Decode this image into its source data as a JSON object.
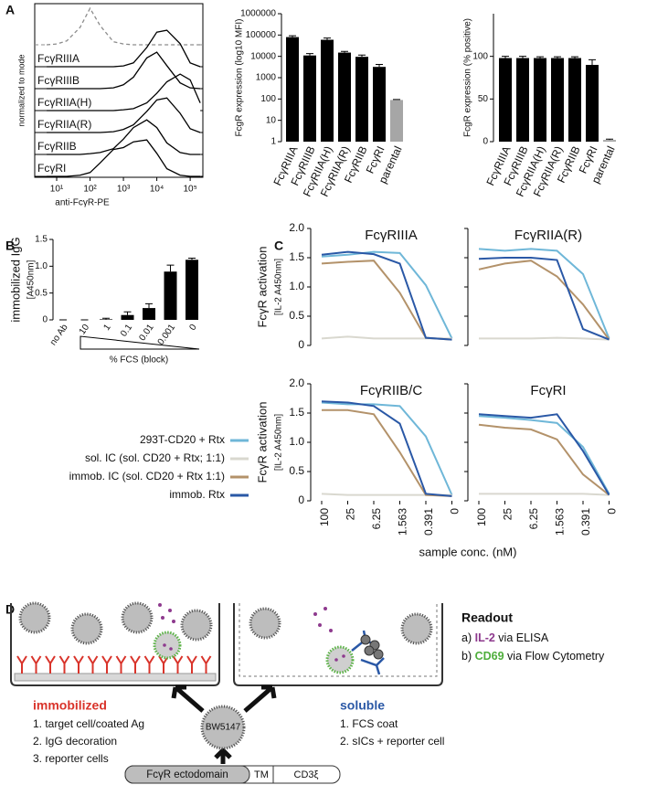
{
  "panel_labels": [
    "A",
    "B",
    "C",
    "D"
  ],
  "chart_data": [
    {
      "type": "ridgeline",
      "xlabel": "anti-FcγR-PE",
      "ylabel": "normalized to mode",
      "log_x": true,
      "xlim": [
        2.2,
        240000
      ],
      "xticks": [
        {
          "value": 10,
          "label": "10¹"
        },
        {
          "value": 100,
          "label": "10²"
        },
        {
          "value": 1000,
          "label": "10³"
        },
        {
          "value": 10000,
          "label": "10⁴"
        },
        {
          "value": 100000,
          "label": "10⁵"
        }
      ],
      "x": [
        5,
        10,
        20,
        50,
        100,
        200,
        500,
        1000,
        2000,
        5000,
        10000,
        20000,
        50000,
        100000,
        200000
      ],
      "series": [
        {
          "dashed": true,
          "color": "#8c8c8c",
          "values": [
            0,
            0.02,
            0.1,
            0.45,
            0.95,
            0.5,
            0.08,
            0.02,
            0,
            0,
            0,
            0,
            0,
            0,
            0
          ]
        },
        {
          "name": "FcγRIIIA",
          "color": "#000000",
          "values": [
            0,
            0,
            0,
            0,
            0,
            0,
            0,
            0.02,
            0.1,
            0.5,
            0.9,
            0.95,
            0.6,
            0.1,
            0
          ]
        },
        {
          "name": "FcγRIIIB",
          "color": "#000000",
          "values": [
            0,
            0,
            0,
            0,
            0,
            0,
            0.02,
            0.1,
            0.3,
            0.8,
            0.95,
            0.6,
            0.15,
            0.02,
            0
          ]
        },
        {
          "name": "FcγRIIA(H)",
          "color": "#000000",
          "values": [
            0,
            0,
            0,
            0,
            0,
            0,
            0,
            0.02,
            0.05,
            0.2,
            0.45,
            0.75,
            0.95,
            0.8,
            0.2
          ]
        },
        {
          "name": "FcγRIIA(R)",
          "color": "#000000",
          "values": [
            0,
            0,
            0,
            0,
            0,
            0,
            0.02,
            0.08,
            0.2,
            0.55,
            0.85,
            0.9,
            0.5,
            0.1,
            0
          ]
        },
        {
          "name": "FcγRIIB",
          "color": "#000000",
          "values": [
            0,
            0,
            0,
            0,
            0.02,
            0.05,
            0.15,
            0.4,
            0.7,
            0.9,
            0.7,
            0.3,
            0.05,
            0,
            0
          ]
        },
        {
          "name": "FcγRI",
          "color": "#000000",
          "values": [
            0,
            0,
            0,
            0.03,
            0.1,
            0.35,
            0.7,
            0.75,
            0.9,
            0.95,
            0.6,
            0.2,
            0.03,
            0,
            0
          ]
        }
      ]
    },
    {
      "type": "bar",
      "log": true,
      "ylabel": "FcgR expression (log10 MFI)",
      "categories": [
        "FcγRIIIA",
        "FcγRIIIB",
        "FcγRIIA(H)",
        "FcγRIIA(R)",
        "FcγRIIB",
        "FcγRI",
        "parental"
      ],
      "values": [
        80000,
        11000,
        60000,
        15000,
        9500,
        3200,
        90
      ],
      "errors": [
        12000,
        2500,
        12000,
        2000,
        2000,
        1000,
        5
      ],
      "colors": [
        "#000000",
        "#000000",
        "#000000",
        "#000000",
        "#000000",
        "#000000",
        "#a6a6a6"
      ],
      "ylim": [
        1,
        1000000
      ],
      "yticks": [
        1,
        10,
        100,
        1000,
        10000,
        100000,
        1000000
      ]
    },
    {
      "type": "bar",
      "ylabel": "FcgR expression (% positive)",
      "categories": [
        "FcγRIIIA",
        "FcγRIIIB",
        "FcγRIIA(H)",
        "FcγRIIA(R)",
        "FcγRIIB",
        "FcγRI",
        "parental"
      ],
      "values": [
        98,
        98,
        98,
        98,
        98,
        90,
        2
      ],
      "errors": [
        2,
        2,
        1.5,
        1.5,
        1.5,
        6,
        1
      ],
      "colors": [
        "#000000",
        "#000000",
        "#000000",
        "#000000",
        "#000000",
        "#000000",
        "#a6a6a6"
      ],
      "ylim": [
        0,
        150
      ],
      "yticks": [
        0,
        50,
        100
      ]
    },
    {
      "type": "bar",
      "ylabel": [
        "immobilized IgG",
        "[A450nm]"
      ],
      "xlabel": "% FCS (block)",
      "categories": [
        "no Ab",
        "10",
        "1",
        "0.1",
        "0.01",
        "0.001",
        "0"
      ],
      "values": [
        0,
        0,
        0.01,
        0.09,
        0.22,
        0.9,
        1.12
      ],
      "errors": [
        0,
        0,
        0.02,
        0.06,
        0.08,
        0.12,
        0.03
      ],
      "colors": [
        "#000000",
        "#000000",
        "#000000",
        "#000000",
        "#000000",
        "#000000",
        "#000000"
      ],
      "ylim": [
        0,
        1.5
      ],
      "yticks": [
        0,
        0.5,
        {
          "value": 1,
          "label": "1.0"
        },
        1.5
      ]
    },
    {
      "type": "line",
      "ylabel": [
        "FcγR activation",
        "[IL-2 A450nm]"
      ],
      "xlabel": "sample conc. (nM)",
      "categories": [
        "100",
        "25",
        "6.25",
        "1.563",
        "0.391",
        "0"
      ],
      "ylim": [
        0,
        2
      ],
      "yticks": [
        0,
        0.5,
        {
          "value": 1,
          "label": "1.0"
        },
        1.5,
        {
          "value": 2,
          "label": "2.0"
        }
      ],
      "series": [
        {
          "name": "293T-CD20 + Rtx",
          "color": "#6fb7d8"
        },
        {
          "name": "sol. IC (sol. CD20 + Rtx; 1:1)",
          "color": "#d9d8cf"
        },
        {
          "name": "immob. IC (sol. CD20 + Rtx 1:1)",
          "color": "#b3926a"
        },
        {
          "name": "immob. Rtx",
          "color": "#2a58a6"
        }
      ],
      "panels": [
        {
          "title": "FcγRIIIA",
          "values": [
            [
              1.52,
              1.55,
              1.6,
              1.58,
              1.03,
              0.12
            ],
            [
              0.12,
              0.15,
              0.12,
              0.12,
              0.12,
              0.12
            ],
            [
              1.4,
              1.43,
              1.45,
              0.9,
              0.13,
              0.1
            ],
            [
              1.55,
              1.6,
              1.56,
              1.4,
              0.13,
              0.1
            ]
          ]
        },
        {
          "title": "FcγRIIA(R)",
          "values": [
            [
              1.65,
              1.62,
              1.65,
              1.62,
              1.22,
              0.12
            ],
            [
              0.12,
              0.12,
              0.12,
              0.13,
              0.12,
              0.1
            ],
            [
              1.3,
              1.4,
              1.45,
              1.18,
              0.7,
              0.1
            ],
            [
              1.48,
              1.5,
              1.5,
              1.46,
              0.28,
              0.1
            ]
          ]
        },
        {
          "title": "FcγRIIB/C",
          "values": [
            [
              1.68,
              1.65,
              1.65,
              1.62,
              1.1,
              0.1
            ],
            [
              0.12,
              0.1,
              0.1,
              0.1,
              0.1,
              0.1
            ],
            [
              1.55,
              1.55,
              1.48,
              0.83,
              0.1,
              0.08
            ],
            [
              1.7,
              1.68,
              1.62,
              1.32,
              0.12,
              0.08
            ]
          ]
        },
        {
          "title": "FcγRI",
          "values": [
            [
              1.45,
              1.42,
              1.38,
              1.33,
              0.92,
              0.12
            ],
            [
              0.12,
              0.12,
              0.12,
              0.12,
              0.12,
              0.1
            ],
            [
              1.3,
              1.25,
              1.22,
              1.05,
              0.45,
              0.1
            ],
            [
              1.48,
              1.45,
              1.42,
              1.48,
              0.85,
              0.1
            ]
          ]
        }
      ]
    }
  ],
  "diagram": {
    "immobilized": {
      "title": "immobilized",
      "steps": [
        "1. target cell/coated Ag",
        "2. IgG decoration",
        "3. reporter cells"
      ]
    },
    "soluble": {
      "title": "soluble",
      "steps": [
        "1. FCS coat",
        "2. sICs + reporter cell"
      ]
    },
    "cell": "BW5147",
    "readout": {
      "title": "Readout",
      "items": [
        {
          "prefix": "a) ",
          "marker": "IL-2",
          "suffix": " via ELISA"
        },
        {
          "prefix": "b) ",
          "marker": "CD69",
          "suffix": " via Flow Cytometry"
        }
      ]
    },
    "construct": [
      "FcγR ectodomain",
      "TM",
      "CD3ξ"
    ]
  }
}
